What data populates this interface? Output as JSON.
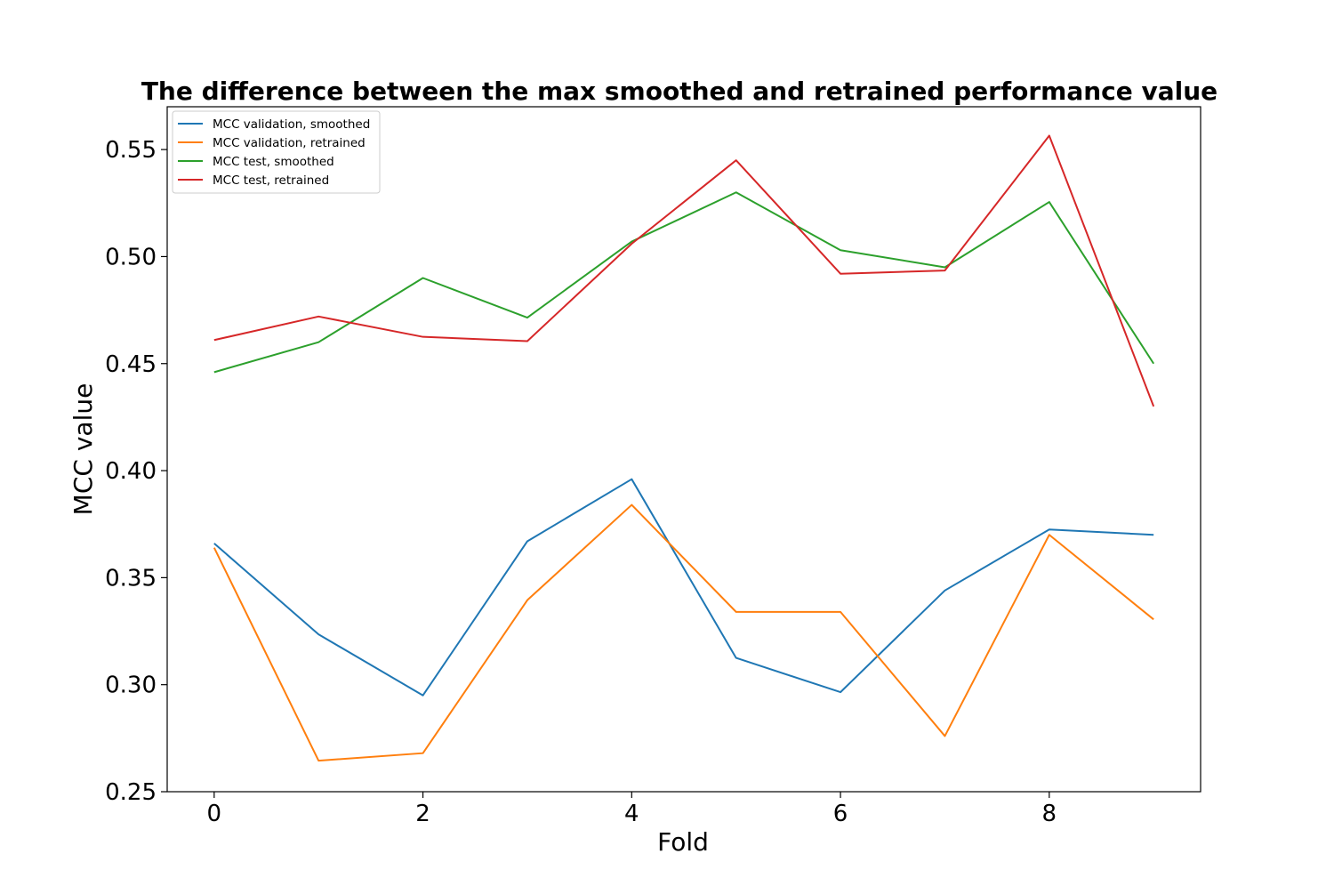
{
  "chart_data": {
    "type": "line",
    "title": "The difference between the max smoothed and retrained performance value",
    "xlabel": "Fold",
    "ylabel": "MCC value",
    "xlim": [
      -0.45,
      9.45
    ],
    "ylim": [
      0.25,
      0.57
    ],
    "xticks": [
      0,
      2,
      4,
      6,
      8
    ],
    "xtick_labels": [
      "0",
      "2",
      "4",
      "6",
      "8"
    ],
    "yticks": [
      0.25,
      0.3,
      0.35,
      0.4,
      0.45,
      0.5,
      0.55
    ],
    "ytick_labels": [
      "0.25",
      "0.30",
      "0.35",
      "0.40",
      "0.45",
      "0.50",
      "0.55"
    ],
    "grid": false,
    "legend_position": "top-left",
    "x": [
      0,
      1,
      2,
      3,
      4,
      5,
      6,
      7,
      8,
      9
    ],
    "series": [
      {
        "name": "MCC validation, smoothed",
        "color": "#1f77b4",
        "values": [
          0.366,
          0.3235,
          0.295,
          0.367,
          0.396,
          0.3125,
          0.2965,
          0.344,
          0.3725,
          0.37
        ]
      },
      {
        "name": "MCC validation, retrained",
        "color": "#ff7f0e",
        "values": [
          0.364,
          0.2645,
          0.268,
          0.3395,
          0.384,
          0.334,
          0.334,
          0.276,
          0.37,
          0.3305
        ]
      },
      {
        "name": "MCC test, smoothed",
        "color": "#2ca02c",
        "values": [
          0.446,
          0.46,
          0.49,
          0.4715,
          0.507,
          0.53,
          0.503,
          0.495,
          0.5255,
          0.45
        ]
      },
      {
        "name": "MCC test, retrained",
        "color": "#d62728",
        "values": [
          0.461,
          0.472,
          0.4625,
          0.4605,
          0.506,
          0.545,
          0.492,
          0.4935,
          0.5565,
          0.43
        ]
      }
    ]
  }
}
